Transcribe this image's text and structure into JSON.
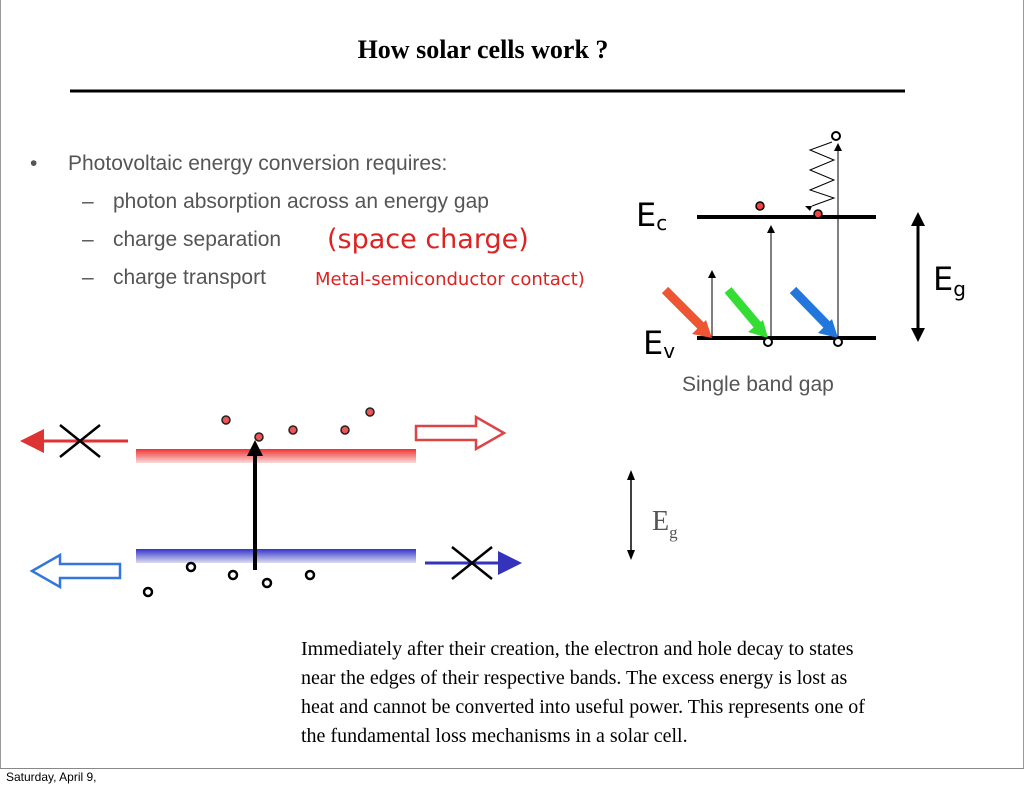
{
  "header": {
    "title": "How solar cells work ?"
  },
  "bullets": {
    "marker": "•",
    "dash": "–",
    "main": "Photovoltaic energy conversion requires:",
    "items": [
      "photon absorption across an energy gap",
      "charge separation",
      "charge transport"
    ]
  },
  "annotations": {
    "space_charge": "(space charge)",
    "contact": "Metal-semiconductor contact)"
  },
  "band_diagram": {
    "conduction": {
      "symbol": "E",
      "subscript": "c"
    },
    "valence": {
      "symbol": "E",
      "subscript": "v"
    },
    "gap": {
      "symbol": "E",
      "subscript": "g"
    },
    "caption": "Single band gap"
  },
  "decay_diagram": {
    "gap": {
      "symbol": "E",
      "subscript": "g"
    }
  },
  "paragraph": {
    "lines": [
      "Immediately after their creation, the electron and hole decay to states",
      "near the edges of their respective bands. The excess energy is lost as",
      "heat and cannot be converted into useful power. This represents one of",
      "the fundamental loss mechanisms in a solar cell."
    ]
  },
  "footer": {
    "date": "Saturday, April 9,"
  }
}
